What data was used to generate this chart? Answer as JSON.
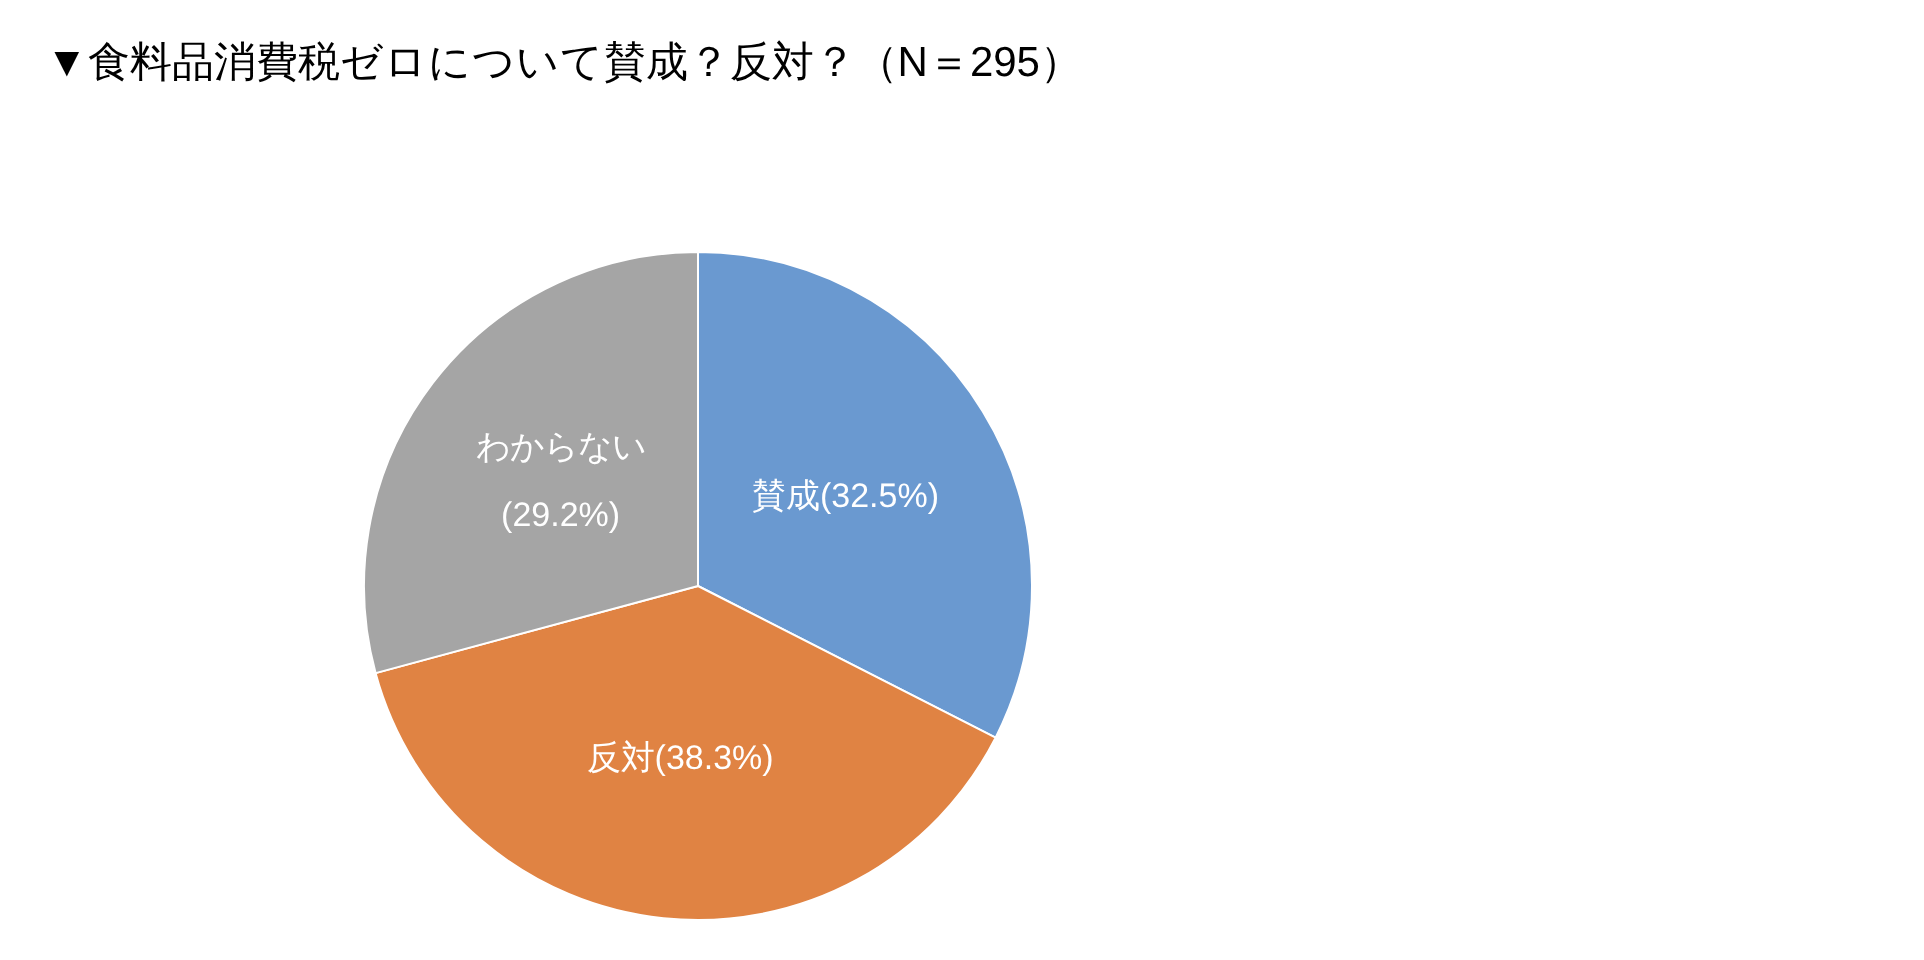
{
  "chart_data": {
    "type": "pie",
    "title": "▼食料品消費税ゼロについて賛成？反対？（N＝295）",
    "categories": [
      "賛成",
      "反対",
      "わからない"
    ],
    "values": [
      32.5,
      38.3,
      29.2
    ],
    "value_labels": [
      "(32.5%)",
      "(38.3%)",
      "(29.2%)"
    ],
    "colors": [
      "#6a99d0",
      "#e08343",
      "#a5a5a5"
    ],
    "legend": false
  }
}
